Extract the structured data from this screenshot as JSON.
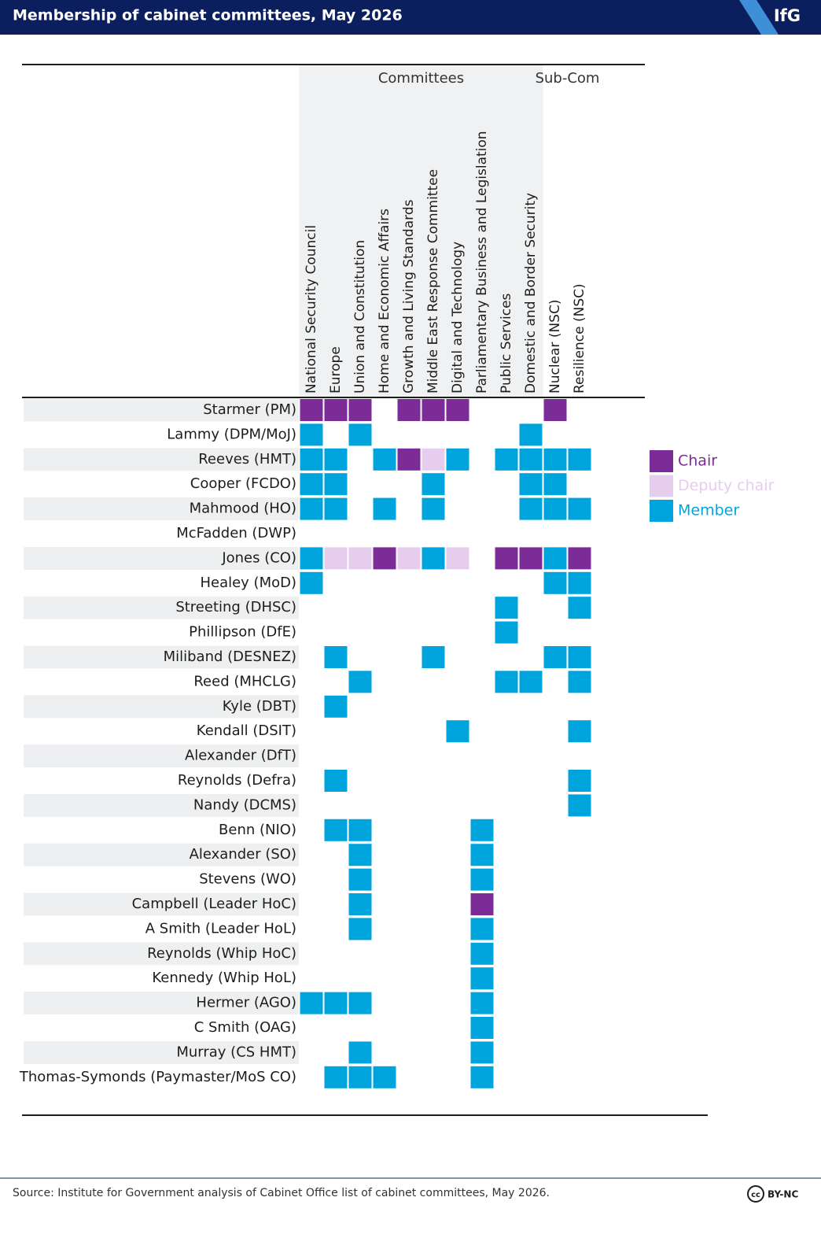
{
  "header": {
    "title": "Membership of cabinet committees, May 2026",
    "logo": "IfG"
  },
  "groups": [
    {
      "label": "Committees",
      "first": 0,
      "last": 9
    },
    {
      "label": "Sub-Com",
      "first": 10,
      "last": 11
    }
  ],
  "columns": [
    "National Security Council",
    "Europe",
    "Union and Constitution",
    "Home and Economic Affairs",
    "Growth and Living Standards",
    "Middle East Response Committee",
    "Digital and Technology",
    "Parliamentary Business and Legislation",
    "Public Services",
    "Domestic and Border Security",
    "Nuclear (NSC)",
    "Resilience (NSC)"
  ],
  "legend": [
    {
      "name": "Chair",
      "color": "#7b2c96"
    },
    {
      "name": "Deputy chair",
      "color": "#e6cdee"
    },
    {
      "name": "Member",
      "color": "#00a4dd"
    }
  ],
  "rows": [
    {
      "name": "Starmer (PM)",
      "cells": [
        0,
        0,
        0,
        null,
        0,
        0,
        0,
        null,
        null,
        null,
        0,
        null
      ]
    },
    {
      "name": "Lammy (DPM/MoJ)",
      "cells": [
        2,
        null,
        2,
        null,
        null,
        null,
        null,
        null,
        null,
        2,
        null,
        null
      ]
    },
    {
      "name": "Reeves (HMT)",
      "cells": [
        2,
        2,
        null,
        2,
        0,
        1,
        2,
        null,
        2,
        2,
        2,
        2
      ]
    },
    {
      "name": "Cooper (FCDO)",
      "cells": [
        2,
        2,
        null,
        null,
        null,
        2,
        null,
        null,
        null,
        2,
        2,
        null
      ]
    },
    {
      "name": "Mahmood (HO)",
      "cells": [
        2,
        2,
        null,
        2,
        null,
        2,
        null,
        null,
        null,
        2,
        2,
        2
      ]
    },
    {
      "name": "McFadden (DWP)",
      "cells": [
        null,
        null,
        null,
        null,
        null,
        null,
        null,
        null,
        null,
        null,
        null,
        null
      ]
    },
    {
      "name": "Jones (CO)",
      "cells": [
        2,
        1,
        1,
        0,
        1,
        2,
        1,
        null,
        0,
        0,
        2,
        0
      ]
    },
    {
      "name": "Healey (MoD)",
      "cells": [
        2,
        null,
        null,
        null,
        null,
        null,
        null,
        null,
        null,
        null,
        2,
        2
      ]
    },
    {
      "name": "Streeting (DHSC)",
      "cells": [
        null,
        null,
        null,
        null,
        null,
        null,
        null,
        null,
        2,
        null,
        null,
        2
      ]
    },
    {
      "name": "Phillipson (DfE)",
      "cells": [
        null,
        null,
        null,
        null,
        null,
        null,
        null,
        null,
        2,
        null,
        null,
        null
      ]
    },
    {
      "name": "Miliband (DESNEZ)",
      "cells": [
        null,
        2,
        null,
        null,
        null,
        2,
        null,
        null,
        null,
        null,
        2,
        2
      ]
    },
    {
      "name": "Reed (MHCLG)",
      "cells": [
        null,
        null,
        2,
        null,
        null,
        null,
        null,
        null,
        2,
        2,
        null,
        2
      ]
    },
    {
      "name": "Kyle (DBT)",
      "cells": [
        null,
        2,
        null,
        null,
        null,
        null,
        null,
        null,
        null,
        null,
        null,
        null
      ]
    },
    {
      "name": "Kendall (DSIT)",
      "cells": [
        null,
        null,
        null,
        null,
        null,
        null,
        2,
        null,
        null,
        null,
        null,
        2
      ]
    },
    {
      "name": "Alexander (DfT)",
      "cells": [
        null,
        null,
        null,
        null,
        null,
        null,
        null,
        null,
        null,
        null,
        null,
        null
      ]
    },
    {
      "name": "Reynolds (Defra)",
      "cells": [
        null,
        2,
        null,
        null,
        null,
        null,
        null,
        null,
        null,
        null,
        null,
        2
      ]
    },
    {
      "name": "Nandy (DCMS)",
      "cells": [
        null,
        null,
        null,
        null,
        null,
        null,
        null,
        null,
        null,
        null,
        null,
        2
      ]
    },
    {
      "name": "Benn (NIO)",
      "cells": [
        null,
        2,
        2,
        null,
        null,
        null,
        null,
        2,
        null,
        null,
        null,
        null
      ]
    },
    {
      "name": "Alexander (SO)",
      "cells": [
        null,
        null,
        2,
        null,
        null,
        null,
        null,
        2,
        null,
        null,
        null,
        null
      ]
    },
    {
      "name": "Stevens (WO)",
      "cells": [
        null,
        null,
        2,
        null,
        null,
        null,
        null,
        2,
        null,
        null,
        null,
        null
      ]
    },
    {
      "name": "Campbell (Leader HoC)",
      "cells": [
        null,
        null,
        2,
        null,
        null,
        null,
        null,
        0,
        null,
        null,
        null,
        null
      ]
    },
    {
      "name": "A Smith (Leader HoL)",
      "cells": [
        null,
        null,
        2,
        null,
        null,
        null,
        null,
        2,
        null,
        null,
        null,
        null
      ]
    },
    {
      "name": "Reynolds (Whip HoC)",
      "cells": [
        null,
        null,
        null,
        null,
        null,
        null,
        null,
        2,
        null,
        null,
        null,
        null
      ]
    },
    {
      "name": "Kennedy (Whip HoL)",
      "cells": [
        null,
        null,
        null,
        null,
        null,
        null,
        null,
        2,
        null,
        null,
        null,
        null
      ]
    },
    {
      "name": "Hermer (AGO)",
      "cells": [
        2,
        2,
        2,
        null,
        null,
        null,
        null,
        2,
        null,
        null,
        null,
        null
      ]
    },
    {
      "name": "C Smith (OAG)",
      "cells": [
        null,
        null,
        null,
        null,
        null,
        null,
        null,
        2,
        null,
        null,
        null,
        null
      ]
    },
    {
      "name": "Murray (CS HMT)",
      "cells": [
        null,
        null,
        2,
        null,
        null,
        null,
        null,
        2,
        null,
        null,
        null,
        null
      ]
    },
    {
      "name": "Thomas-Symonds (Paymaster/MoS CO)",
      "cells": [
        null,
        2,
        2,
        2,
        null,
        null,
        null,
        2,
        null,
        null,
        null,
        null
      ]
    }
  ],
  "footer": {
    "source": "Source: Institute for Government analysis of Cabinet Office list of cabinet committees, May 2026.",
    "license_icon": "cc",
    "license": "BY-NC"
  }
}
